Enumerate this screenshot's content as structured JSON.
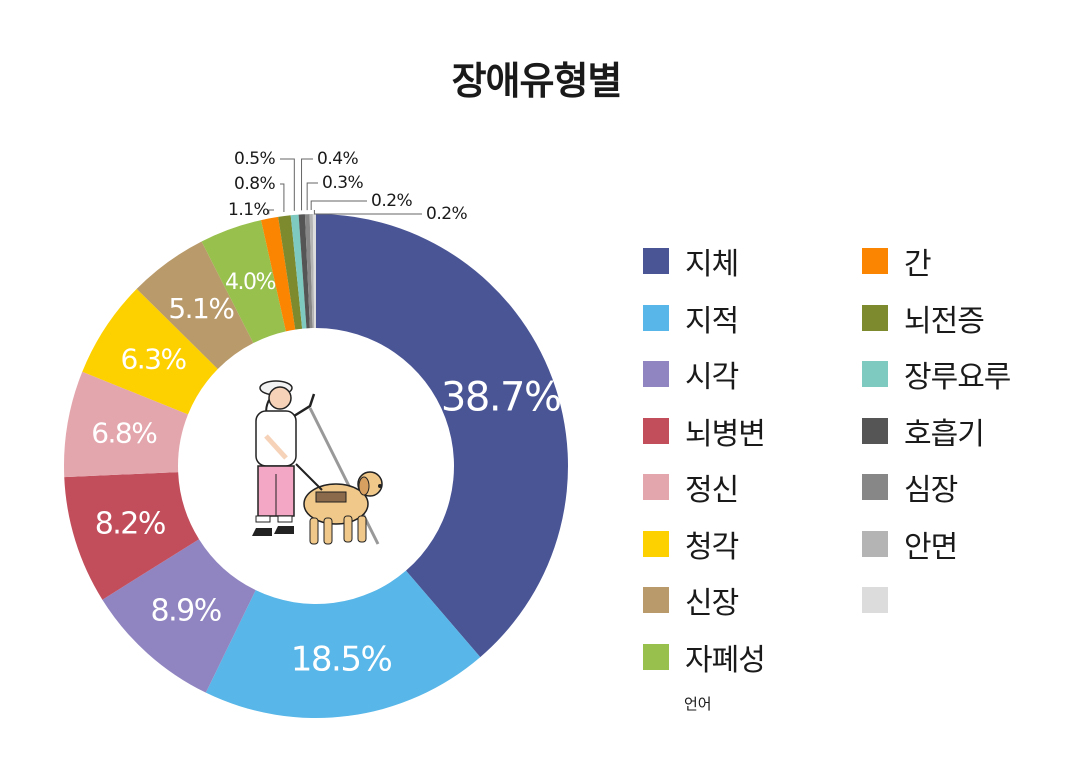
{
  "chart_data": {
    "type": "pie",
    "title": "장애유형별",
    "categories": [
      "지체",
      "지적",
      "시각",
      "뇌병변",
      "정신",
      "청각",
      "신장",
      "자폐성",
      "간",
      "뇌전증",
      "장루요루",
      "호흡기",
      "심장",
      "안면",
      "언어"
    ],
    "values": [
      38.7,
      18.5,
      8.9,
      8.2,
      6.8,
      6.3,
      5.1,
      4.0,
      1.1,
      0.8,
      0.5,
      0.4,
      0.3,
      0.2,
      0.2
    ],
    "data_labels": [
      "38.7%",
      "18.5%",
      "8.9%",
      "8.2%",
      "6.8%",
      "6.3%",
      "5.1%",
      "4.0%",
      "1.1%",
      "0.8%",
      "0.5%",
      "0.4%",
      "0.3%",
      "0.2%",
      "0.2%"
    ],
    "colors": [
      "#4a5596",
      "#58b6e8",
      "#9185c1",
      "#c24e5c",
      "#e3a6ad",
      "#fdd000",
      "#b99a6a",
      "#98c04c",
      "#fb8500",
      "#7d8a2e",
      "#7ec9c0",
      "#555555",
      "#878787",
      "#b4b4b4",
      "#dcdcdc"
    ],
    "style": "donut",
    "legend_position": "right"
  },
  "legend_note": "언어",
  "center_image_icon": "person-with-guide-dog-illustration"
}
